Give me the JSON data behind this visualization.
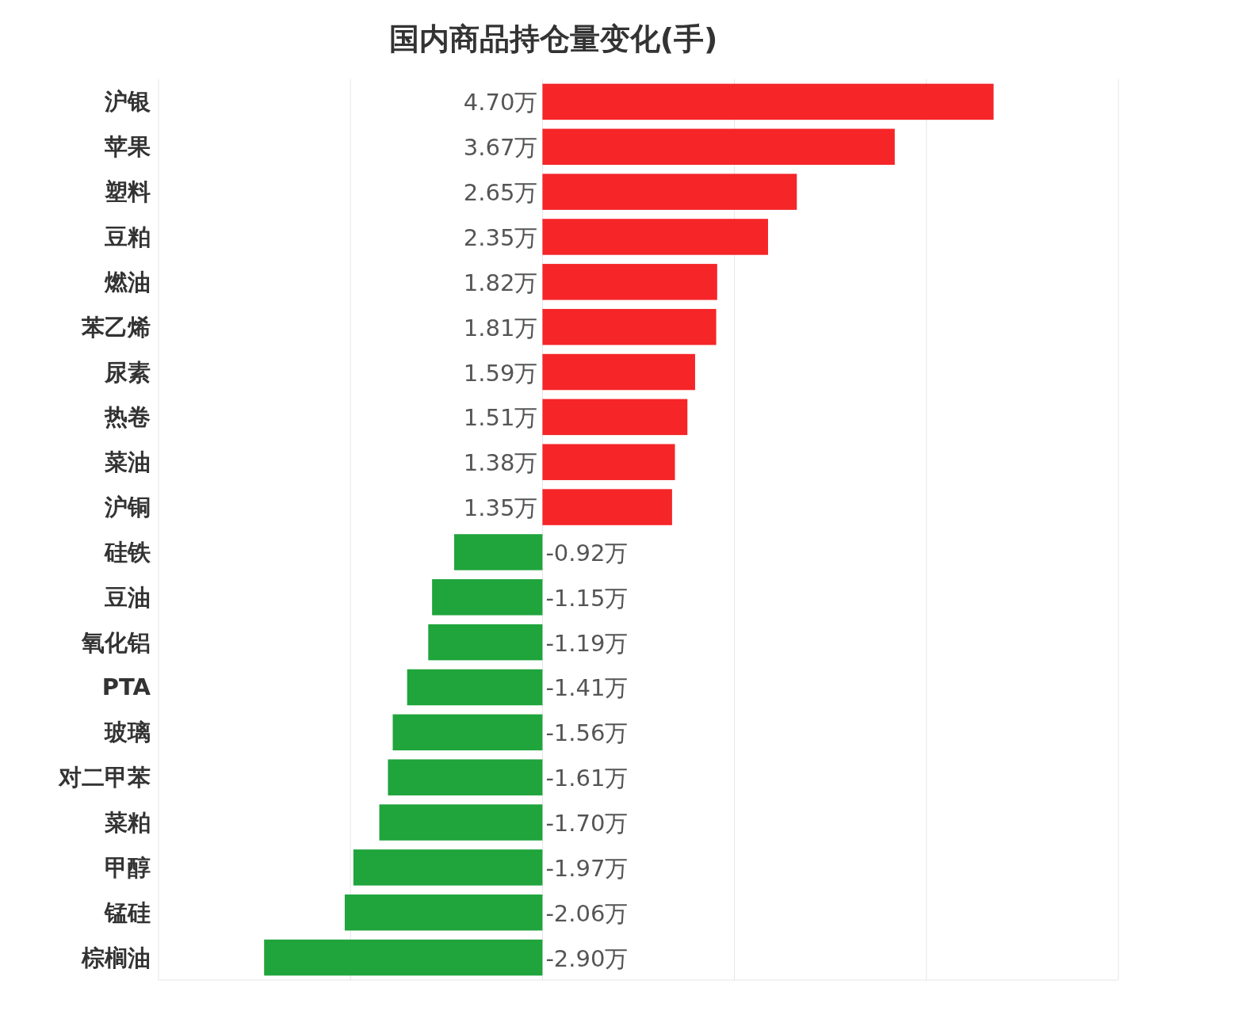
{
  "chart_data": {
    "type": "bar",
    "orientation": "horizontal",
    "title": "国内商品持仓量变化(手)",
    "categories": [
      "沪银",
      "苹果",
      "塑料",
      "豆粕",
      "燃油",
      "苯乙烯",
      "尿素",
      "热卷",
      "菜油",
      "沪铜",
      "硅铁",
      "豆油",
      "氧化铝",
      "PTA",
      "玻璃",
      "对二甲苯",
      "菜粕",
      "甲醇",
      "锰硅",
      "棕榈油"
    ],
    "values": [
      4.7,
      3.67,
      2.65,
      2.35,
      1.82,
      1.81,
      1.59,
      1.51,
      1.38,
      1.35,
      -0.92,
      -1.15,
      -1.19,
      -1.41,
      -1.56,
      -1.61,
      -1.7,
      -1.97,
      -2.06,
      -2.9
    ],
    "value_labels": [
      "4.70万",
      "3.67万",
      "2.65万",
      "2.35万",
      "1.82万",
      "1.81万",
      "1.59万",
      "1.51万",
      "1.38万",
      "1.35万",
      "-0.92万",
      "-1.15万",
      "-1.19万",
      "-1.41万",
      "-1.56万",
      "-1.61万",
      "-1.70万",
      "-1.97万",
      "-2.06万",
      "-2.90万"
    ],
    "colors": [
      "#f52528",
      "#f52528",
      "#f52528",
      "#f52528",
      "#f52528",
      "#f52528",
      "#f52528",
      "#f52528",
      "#f52528",
      "#f52528",
      "#20a43c",
      "#20a43c",
      "#20a43c",
      "#20a43c",
      "#20a43c",
      "#20a43c",
      "#20a43c",
      "#20a43c",
      "#20a43c",
      "#20a43c"
    ],
    "xlim": [
      -4,
      6
    ],
    "xticks": [
      {
        "value": -4,
        "label": null
      },
      {
        "value": -2,
        "label": null
      },
      {
        "value": 0,
        "label": null
      },
      {
        "value": 2,
        "label": null
      },
      {
        "value": 4,
        "label": null
      },
      {
        "value": 6,
        "label": null
      }
    ],
    "grid": "x",
    "tick_labels": "y"
  }
}
